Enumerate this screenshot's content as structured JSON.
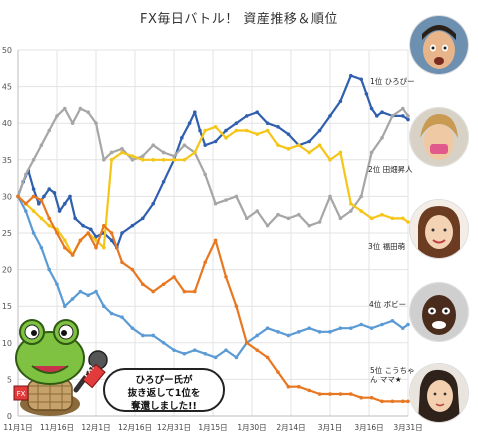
{
  "chart_data": {
    "type": "line",
    "title": "FX毎日バトル！ 資産推移＆順位",
    "xlabel": "",
    "ylabel": "",
    "ylim": [
      0,
      50
    ],
    "yticks": [
      0,
      5,
      10,
      15,
      20,
      25,
      30,
      35,
      40,
      45,
      50
    ],
    "xticks": [
      "11月1日",
      "11月16日",
      "12月1日",
      "12月16日",
      "12月31日",
      "1月15日",
      "1月30日",
      "2月14日",
      "3月1日",
      "3月16日",
      "3月31日"
    ],
    "x_range_days": [
      0,
      150
    ],
    "grid": true,
    "series": [
      {
        "name": "ひろぴー",
        "color": "#2f5fae",
        "x": [
          0,
          2,
          4,
          6,
          8,
          10,
          12,
          14,
          16,
          18,
          20,
          22,
          25,
          28,
          30,
          33,
          36,
          38,
          40,
          44,
          48,
          52,
          56,
          60,
          63,
          66,
          68,
          70,
          72,
          76,
          80,
          84,
          88,
          92,
          96,
          100,
          104,
          108,
          112,
          116,
          120,
          124,
          128,
          132,
          134,
          136,
          138,
          140,
          144,
          148,
          150
        ],
        "values": [
          30,
          32,
          33.5,
          31,
          29,
          30,
          31,
          30.5,
          28,
          29,
          30,
          27,
          26,
          25.5,
          24.5,
          25,
          24,
          23,
          25,
          26,
          27,
          29,
          32,
          35,
          38,
          40,
          41.5,
          39,
          37,
          37.5,
          39,
          40,
          41,
          41.5,
          40,
          39.5,
          38.5,
          37,
          37.5,
          39,
          41,
          43,
          46.5,
          46,
          44,
          42,
          41,
          41.5,
          41,
          41,
          40.5
        ]
      },
      {
        "name": "田畑昇人",
        "color": "#a6a6a6",
        "x": [
          0,
          3,
          6,
          9,
          12,
          15,
          18,
          21,
          24,
          27,
          30,
          33,
          36,
          40,
          44,
          48,
          52,
          56,
          60,
          64,
          68,
          72,
          76,
          80,
          84,
          88,
          92,
          96,
          100,
          104,
          108,
          112,
          116,
          120,
          124,
          128,
          132,
          136,
          140,
          144,
          148,
          150
        ],
        "values": [
          30,
          33,
          35,
          37,
          39,
          41,
          42,
          40,
          42,
          41.5,
          40,
          35,
          36,
          36.5,
          35,
          35.5,
          37,
          36,
          35.5,
          37,
          36,
          33,
          29,
          29.5,
          30,
          27,
          28,
          26,
          27.5,
          27,
          27.5,
          26,
          26.5,
          30,
          27,
          28,
          30,
          36,
          38,
          41,
          42,
          41
        ]
      },
      {
        "name": "福田萌",
        "color": "#f5c518",
        "x": [
          0,
          3,
          6,
          9,
          12,
          15,
          18,
          21,
          24,
          27,
          30,
          33,
          36,
          40,
          44,
          48,
          52,
          56,
          60,
          64,
          68,
          72,
          76,
          80,
          84,
          88,
          92,
          96,
          100,
          104,
          108,
          112,
          116,
          120,
          124,
          128,
          132,
          136,
          140,
          144,
          148,
          150
        ],
        "values": [
          30,
          29,
          28,
          27,
          26,
          25.5,
          24,
          22,
          24,
          25,
          24,
          23,
          35,
          36,
          35.5,
          35,
          35,
          35,
          35,
          35,
          36,
          39,
          39.5,
          38,
          39,
          39,
          38.5,
          39,
          37,
          36.5,
          37,
          36,
          37,
          35,
          36,
          29,
          28,
          27,
          27.5,
          27,
          27,
          26.5
        ]
      },
      {
        "name": "ボビー",
        "color": "#5b9bd5",
        "x": [
          0,
          3,
          6,
          9,
          12,
          15,
          18,
          21,
          24,
          27,
          30,
          33,
          36,
          40,
          44,
          48,
          52,
          56,
          60,
          64,
          68,
          72,
          76,
          80,
          84,
          88,
          92,
          96,
          100,
          104,
          108,
          112,
          116,
          120,
          124,
          128,
          132,
          136,
          140,
          144,
          148,
          150
        ],
        "values": [
          30,
          28,
          25,
          23,
          20,
          18,
          15,
          16,
          17,
          16.5,
          17,
          15,
          14,
          13.5,
          12,
          11,
          11,
          10,
          9,
          8.5,
          9,
          8.5,
          8,
          9,
          8,
          10,
          11,
          12,
          11.5,
          11,
          11.5,
          12,
          11.5,
          11.5,
          12,
          12,
          12.5,
          12,
          12.5,
          13,
          12,
          12.5
        ]
      },
      {
        "name": "こうちゃんママ★",
        "color": "#e87722",
        "x": [
          0,
          3,
          6,
          9,
          12,
          15,
          18,
          21,
          24,
          27,
          30,
          33,
          36,
          40,
          44,
          48,
          52,
          56,
          60,
          64,
          68,
          72,
          76,
          80,
          84,
          88,
          92,
          96,
          100,
          104,
          108,
          112,
          116,
          120,
          124,
          128,
          132,
          136,
          140,
          144,
          148,
          150
        ],
        "values": [
          30,
          29,
          30,
          29.5,
          27,
          25,
          23,
          22,
          24,
          25,
          23,
          26,
          25,
          21,
          20,
          18,
          17,
          18,
          19,
          17,
          17,
          21,
          24,
          19,
          15,
          10,
          9,
          8,
          6,
          4,
          4,
          3.5,
          3,
          3,
          3,
          3,
          2.5,
          2.5,
          2,
          2,
          2,
          2
        ]
      }
    ]
  },
  "rank_labels": [
    {
      "rank": "1位",
      "name": "ひろぴー"
    },
    {
      "rank": "2位",
      "name": "田畑昇人"
    },
    {
      "rank": "3位",
      "name": "福田萌"
    },
    {
      "rank": "4位",
      "name": "ボビー"
    },
    {
      "rank": "5位",
      "name": "こうちゃん ママ★"
    }
  ],
  "annotation": {
    "bubble_line1": "ひろぴー氏が",
    "bubble_line2": "抜き返して1位を",
    "bubble_line3": "奪還しました!!",
    "mic_label": "FX!"
  }
}
